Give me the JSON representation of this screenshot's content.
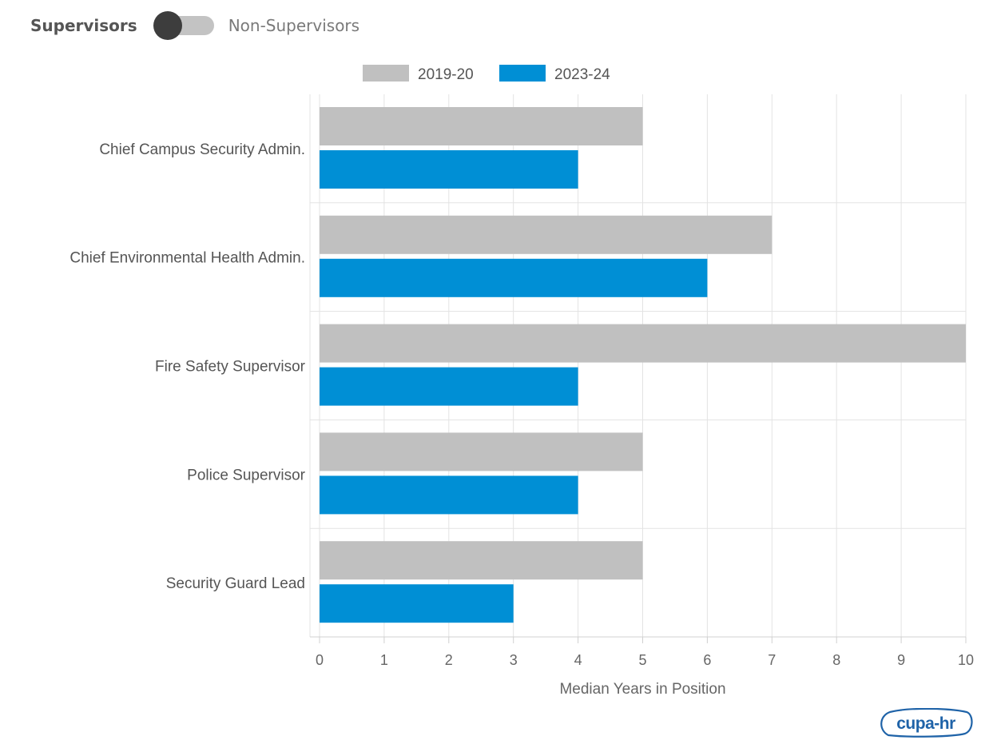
{
  "toggle": {
    "active_label": "Supervisors",
    "inactive_label": "Non-Supervisors",
    "state": "Supervisors"
  },
  "logo": {
    "text": "cupa-hr",
    "color": "#1f63a8"
  },
  "chart_data": {
    "type": "bar",
    "orientation": "horizontal",
    "title": "",
    "xlabel": "Median Years in Position",
    "ylabel": "",
    "categories": [
      "Chief Campus Security Admin.",
      "Chief Environmental Health Admin.",
      "Fire Safety Supervisor",
      "Police Supervisor",
      "Security Guard Lead"
    ],
    "series": [
      {
        "name": "2019-20",
        "color": "#c0c0c0",
        "values": [
          5,
          7,
          10,
          5,
          5
        ]
      },
      {
        "name": "2023-24",
        "color": "#008fd5",
        "values": [
          4,
          6,
          4,
          4,
          3
        ]
      }
    ],
    "xlim": [
      0,
      10
    ],
    "xticks": [
      "0",
      "1",
      "2",
      "3",
      "4",
      "5",
      "6",
      "7",
      "8",
      "9",
      "10"
    ],
    "grid": true,
    "legend_position": "top-center"
  }
}
